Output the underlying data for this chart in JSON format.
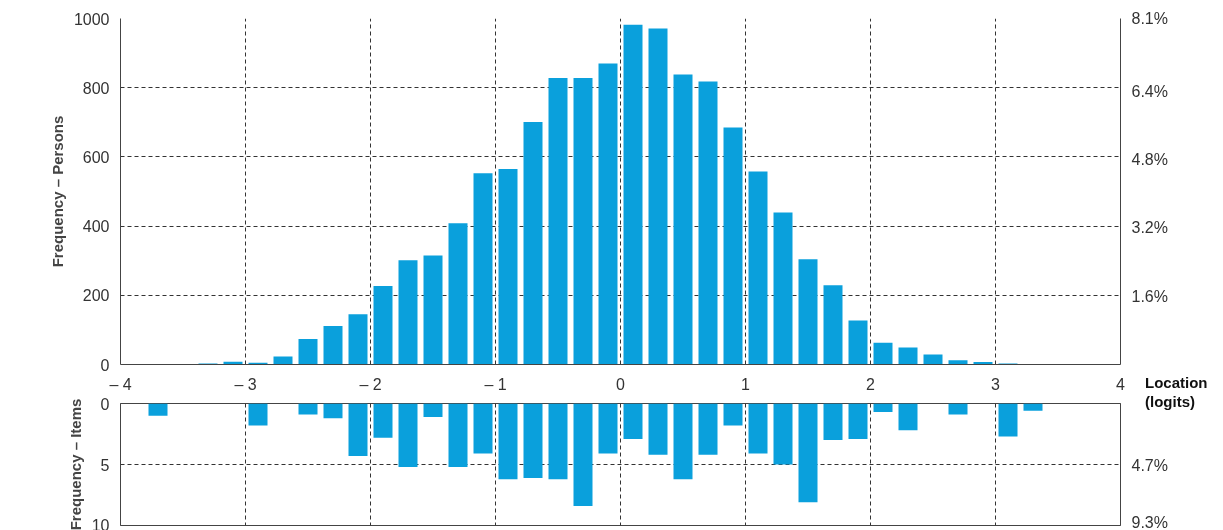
{
  "chart_data": [
    {
      "type": "histogram",
      "ylabel": "Frequency – Persons",
      "xlabel": "Location (logits)",
      "color": "#0aa0dc",
      "bins": [
        -4,
        -3.8,
        -3.6,
        -3.4,
        -3.2,
        -3,
        -2.8,
        -2.6,
        -2.4,
        -2.2,
        -2,
        -1.8,
        -1.6,
        -1.4,
        -1.2,
        -1,
        -0.8,
        -0.6,
        -0.4,
        -0.2,
        0,
        0.2,
        0.4,
        0.6,
        0.8,
        1,
        1.2,
        1.4,
        1.6,
        1.8,
        2,
        2.2,
        2.4,
        2.6,
        2.8,
        3,
        3.2,
        3.4,
        3.6,
        3.8,
        4
      ],
      "values": [
        0,
        0,
        0,
        3,
        8,
        5,
        23,
        74,
        111,
        145,
        227,
        301,
        315,
        408,
        553,
        565,
        701,
        828,
        828,
        870,
        982,
        971,
        838,
        818,
        685,
        558,
        439,
        304,
        229,
        127,
        63,
        49,
        29,
        12,
        7,
        3,
        0,
        0,
        0,
        0
      ],
      "xlim": [
        -4,
        4
      ],
      "xticks": [
        {
          "value": -4,
          "label": "– 4"
        },
        {
          "value": -3,
          "label": "– 3"
        },
        {
          "value": -2,
          "label": "– 2"
        },
        {
          "value": -1,
          "label": "– 1"
        },
        0,
        1,
        2,
        3,
        4
      ],
      "ylim": [
        0,
        1000
      ],
      "yticks": [
        0,
        200,
        400,
        600,
        800,
        1000
      ],
      "y2lim": [
        0,
        8.1
      ],
      "y2ticks": [
        {
          "value": 1.6,
          "label": "1.6%"
        },
        {
          "value": 3.2,
          "label": "3.2%"
        },
        {
          "value": 4.8,
          "label": "4.8%"
        },
        {
          "value": 6.4,
          "label": "6.4%"
        },
        {
          "value": 8.1,
          "label": "8.1%"
        }
      ],
      "grid": true
    },
    {
      "type": "histogram",
      "ylabel": "Frequency – Items",
      "color": "#0aa0dc",
      "bins": [
        -4,
        -3.8,
        -3.6,
        -3.4,
        -3.2,
        -3,
        -2.8,
        -2.6,
        -2.4,
        -2.2,
        -2,
        -1.8,
        -1.6,
        -1.4,
        -1.2,
        -1,
        -0.8,
        -0.6,
        -0.4,
        -0.2,
        0,
        0.2,
        0.4,
        0.6,
        0.8,
        1,
        1.2,
        1.4,
        1.6,
        1.8,
        2,
        2.2,
        2.4,
        2.6,
        2.8,
        3,
        3.2,
        3.4,
        3.6,
        3.8,
        4
      ],
      "values": [
        0,
        1.0,
        0,
        0,
        0,
        1.8,
        0,
        0.9,
        1.2,
        4.3,
        2.8,
        5.2,
        1.1,
        5.2,
        4.1,
        6.2,
        6.1,
        6.2,
        8.4,
        4.1,
        2.9,
        4.2,
        6.2,
        4.2,
        1.8,
        4.1,
        5.0,
        8.1,
        3.0,
        2.9,
        0.7,
        2.2,
        0,
        0.9,
        0,
        2.7,
        0.6,
        0,
        0,
        0
      ],
      "xlim": [
        -4,
        4
      ],
      "xticks": [
        -4,
        -3,
        -2,
        -1,
        0,
        1,
        2,
        3,
        4
      ],
      "ylim": [
        10,
        0
      ],
      "yticks": [
        0,
        5,
        10
      ],
      "y2lim": [
        9.3,
        0
      ],
      "y2ticks": [
        {
          "value": 4.7,
          "label": "4.7%"
        },
        {
          "value": 9.3,
          "label": "9.3%"
        }
      ],
      "grid": true,
      "tick_labels": "y"
    }
  ]
}
